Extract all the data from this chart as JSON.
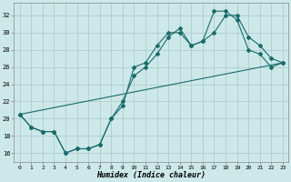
{
  "title": "",
  "xlabel": "Humidex (Indice chaleur)",
  "ylabel": "",
  "xlim": [
    -0.5,
    23.5
  ],
  "ylim": [
    15.0,
    33.5
  ],
  "yticks": [
    16,
    18,
    20,
    22,
    24,
    26,
    28,
    30,
    32
  ],
  "xticks": [
    0,
    1,
    2,
    3,
    4,
    5,
    6,
    7,
    8,
    9,
    10,
    11,
    12,
    13,
    14,
    15,
    16,
    17,
    18,
    19,
    20,
    21,
    22,
    23
  ],
  "background_color": "#cde8e8",
  "grid_color": "#a8c8c8",
  "line_color": "#1a6b6b",
  "line1_x": [
    0,
    1,
    2,
    3,
    4,
    5,
    6,
    7,
    8,
    9,
    10,
    11,
    12,
    13,
    14,
    15,
    16,
    17,
    18,
    19,
    20,
    21,
    22,
    23
  ],
  "line1_y": [
    20.5,
    19.0,
    18.5,
    18.5,
    16.0,
    16.5,
    16.5,
    17.0,
    20.0,
    21.5,
    26.0,
    26.5,
    28.5,
    30.0,
    30.0,
    28.5,
    29.0,
    32.5,
    32.5,
    31.5,
    28.0,
    27.5,
    26.0,
    26.5
  ],
  "line2_x": [
    0,
    1,
    2,
    3,
    4,
    5,
    6,
    7,
    8,
    9,
    10,
    11,
    12,
    13,
    14,
    15,
    16,
    17,
    18,
    19,
    20,
    21,
    22,
    23
  ],
  "line2_y": [
    20.5,
    19.0,
    18.5,
    18.5,
    16.0,
    16.5,
    16.5,
    17.0,
    20.0,
    22.0,
    25.0,
    26.0,
    27.5,
    29.5,
    30.5,
    28.5,
    29.0,
    30.0,
    32.0,
    32.0,
    29.5,
    28.5,
    27.0,
    26.5
  ],
  "line3_x": [
    0,
    23
  ],
  "line3_y": [
    20.5,
    26.5
  ],
  "figsize": [
    3.2,
    2.0
  ],
  "dpi": 100
}
